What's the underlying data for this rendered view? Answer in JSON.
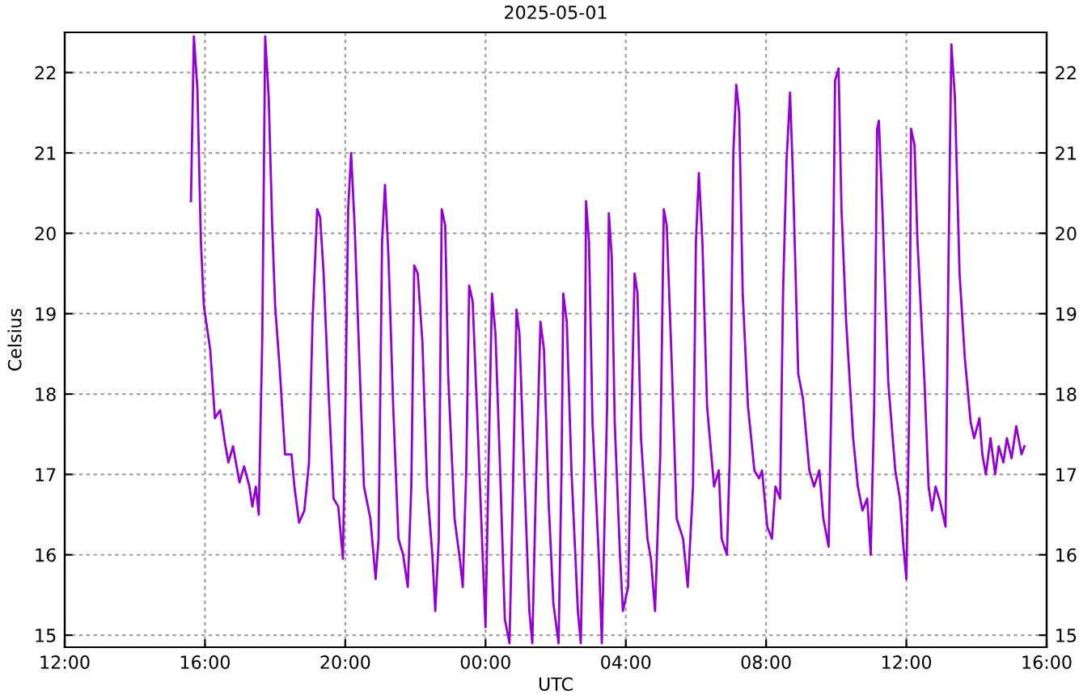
{
  "chart_data": {
    "type": "line",
    "title": "2025-05-01",
    "xlabel": "UTC",
    "ylabel": "Celsius",
    "xlim": [
      "2025-04-30T12:00",
      "2025-05-01T16:00"
    ],
    "xticks": [
      {
        "value": "2025-04-30T12:00",
        "label": "12:00"
      },
      {
        "value": "2025-04-30T16:00",
        "label": "16:00"
      },
      {
        "value": "2025-04-30T20:00",
        "label": "20:00"
      },
      {
        "value": "2025-05-01T00:00",
        "label": "00:00"
      },
      {
        "value": "2025-05-01T04:00",
        "label": "04:00"
      },
      {
        "value": "2025-05-01T08:00",
        "label": "08:00"
      },
      {
        "value": "2025-05-01T12:00",
        "label": "12:00"
      },
      {
        "value": "2025-05-01T16:00",
        "label": "16:00"
      }
    ],
    "ylim": [
      14.85,
      22.5
    ],
    "yticks": [
      15,
      16,
      17,
      18,
      19,
      20,
      21,
      22
    ],
    "y2lim": [
      14.85,
      22.5
    ],
    "y2ticks": [
      15,
      16,
      17,
      18,
      19,
      20,
      21,
      22
    ],
    "grid": true,
    "legend": false,
    "marker": "none",
    "line_style": "solid",
    "series": [
      {
        "color": "#9400d3",
        "x": [
          "2025-04-30T15:36",
          "2025-04-30T15:41",
          "2025-04-30T15:47",
          "2025-04-30T15:53",
          "2025-04-30T15:58",
          "2025-04-30T16:09",
          "2025-04-30T16:17",
          "2025-04-30T16:26",
          "2025-04-30T16:34",
          "2025-04-30T16:40",
          "2025-04-30T16:48",
          "2025-04-30T16:59",
          "2025-04-30T17:07",
          "2025-04-30T17:16",
          "2025-04-30T17:21",
          "2025-04-30T17:27",
          "2025-04-30T17:32",
          "2025-04-30T17:38",
          "2025-04-30T17:41",
          "2025-04-30T17:43",
          "2025-04-30T17:49",
          "2025-04-30T17:55",
          "2025-04-30T18:00",
          "2025-04-30T18:08",
          "2025-04-30T18:17",
          "2025-04-30T18:28",
          "2025-04-30T18:33",
          "2025-04-30T18:41",
          "2025-04-30T18:50",
          "2025-04-30T18:58",
          "2025-04-30T19:04",
          "2025-04-30T19:12",
          "2025-04-30T19:17",
          "2025-04-30T19:23",
          "2025-04-30T19:31",
          "2025-04-30T19:40",
          "2025-04-30T19:48",
          "2025-04-30T19:56",
          "2025-04-30T19:59",
          "2025-04-30T20:05",
          "2025-04-30T20:10",
          "2025-04-30T20:16",
          "2025-04-30T20:24",
          "2025-04-30T20:32",
          "2025-04-30T20:43",
          "2025-04-30T20:52",
          "2025-04-30T20:57",
          "2025-04-30T21:03",
          "2025-04-30T21:08",
          "2025-04-30T21:14",
          "2025-04-30T21:22",
          "2025-04-30T21:31",
          "2025-04-30T21:39",
          "2025-04-30T21:47",
          "2025-04-30T21:53",
          "2025-04-30T21:58",
          "2025-04-30T22:04",
          "2025-04-30T22:12",
          "2025-04-30T22:20",
          "2025-04-30T22:29",
          "2025-04-30T22:34",
          "2025-04-30T22:40",
          "2025-04-30T22:45",
          "2025-04-30T22:51",
          "2025-04-30T22:56",
          "2025-04-30T23:07",
          "2025-04-30T23:16",
          "2025-04-30T23:21",
          "2025-04-30T23:27",
          "2025-04-30T23:32",
          "2025-04-30T23:38",
          "2025-04-30T23:46",
          "2025-04-30T23:55",
          "2025-05-01T00:00",
          "2025-05-01T00:05",
          "2025-05-01T00:11",
          "2025-05-01T00:17",
          "2025-05-01T00:25",
          "2025-05-01T00:33",
          "2025-05-01T00:41",
          "2025-05-01T00:47",
          "2025-05-01T00:53",
          "2025-05-01T00:58",
          "2025-05-01T01:07",
          "2025-05-01T01:15",
          "2025-05-01T01:20",
          "2025-05-01T01:26",
          "2025-05-01T01:34",
          "2025-05-01T01:40",
          "2025-05-01T01:48",
          "2025-05-01T01:56",
          "2025-05-01T02:05",
          "2025-05-01T02:10",
          "2025-05-01T02:13",
          "2025-05-01T02:19",
          "2025-05-01T02:27",
          "2025-05-01T02:38",
          "2025-05-01T02:43",
          "2025-05-01T02:49",
          "2025-05-01T02:52",
          "2025-05-01T02:57",
          "2025-05-01T03:03",
          "2025-05-01T03:14",
          "2025-05-01T03:19",
          "2025-05-01T03:28",
          "2025-05-01T03:31",
          "2025-05-01T03:36",
          "2025-05-01T03:41",
          "2025-05-01T03:50",
          "2025-05-01T03:55",
          "2025-05-01T04:04",
          "2025-05-01T04:09",
          "2025-05-01T04:15",
          "2025-05-01T04:20",
          "2025-05-01T04:26",
          "2025-05-01T04:37",
          "2025-05-01T04:43",
          "2025-05-01T04:50",
          "2025-05-01T04:59",
          "2025-05-01T05:05",
          "2025-05-01T05:10",
          "2025-05-01T05:19",
          "2025-05-01T05:27",
          "2025-05-01T05:38",
          "2025-05-01T05:46",
          "2025-05-01T05:55",
          "2025-05-01T06:00",
          "2025-05-01T06:05",
          "2025-05-01T06:11",
          "2025-05-01T06:19",
          "2025-05-01T06:31",
          "2025-05-01T06:39",
          "2025-05-01T06:44",
          "2025-05-01T06:53",
          "2025-05-01T06:58",
          "2025-05-01T07:04",
          "2025-05-01T07:09",
          "2025-05-01T07:14",
          "2025-05-01T07:20",
          "2025-05-01T07:29",
          "2025-05-01T07:40",
          "2025-05-01T07:48",
          "2025-05-01T07:53",
          "2025-05-01T08:02",
          "2025-05-01T08:10",
          "2025-05-01T08:16",
          "2025-05-01T08:24",
          "2025-05-01T08:29",
          "2025-05-01T08:35",
          "2025-05-01T08:41",
          "2025-05-01T08:46",
          "2025-05-01T08:55",
          "2025-05-01T09:03",
          "2025-05-01T09:14",
          "2025-05-01T09:22",
          "2025-05-01T09:31",
          "2025-05-01T09:38",
          "2025-05-01T09:47",
          "2025-05-01T09:53",
          "2025-05-01T09:58",
          "2025-05-01T10:04",
          "2025-05-01T10:09",
          "2025-05-01T10:17",
          "2025-05-01T10:29",
          "2025-05-01T10:37",
          "2025-05-01T10:45",
          "2025-05-01T10:53",
          "2025-05-01T10:59",
          "2025-05-01T11:05",
          "2025-05-01T11:10",
          "2025-05-01T11:13",
          "2025-05-01T11:19",
          "2025-05-01T11:29",
          "2025-05-01T11:41",
          "2025-05-01T11:49",
          "2025-05-01T11:55",
          "2025-05-01T12:00",
          "2025-05-01T12:05",
          "2025-05-01T12:08",
          "2025-05-01T12:14",
          "2025-05-01T12:19",
          "2025-05-01T12:31",
          "2025-05-01T12:38",
          "2025-05-01T12:44",
          "2025-05-01T12:50",
          "2025-05-01T12:58",
          "2025-05-01T13:07",
          "2025-05-01T13:12",
          "2025-05-01T13:17",
          "2025-05-01T13:23",
          "2025-05-01T13:31",
          "2025-05-01T13:40",
          "2025-05-01T13:50",
          "2025-05-01T13:56",
          "2025-05-01T14:05",
          "2025-05-01T14:10",
          "2025-05-01T14:16",
          "2025-05-01T14:24",
          "2025-05-01T14:32",
          "2025-05-01T14:38",
          "2025-05-01T14:46",
          "2025-05-01T14:52",
          "2025-05-01T15:00",
          "2025-05-01T15:08",
          "2025-05-01T15:17",
          "2025-05-01T15:22"
        ],
        "values": [
          20.4,
          22.45,
          21.8,
          19.9,
          19.1,
          18.55,
          17.7,
          17.8,
          17.4,
          17.15,
          17.35,
          16.9,
          17.1,
          16.85,
          16.6,
          16.85,
          16.5,
          18.7,
          20.9,
          22.45,
          21.7,
          20.1,
          19.1,
          18.3,
          17.25,
          17.25,
          16.85,
          16.4,
          16.55,
          17.15,
          18.9,
          20.3,
          20.2,
          19.5,
          18.1,
          16.7,
          16.6,
          15.95,
          17.2,
          20.3,
          21.0,
          20.1,
          18.45,
          16.85,
          16.45,
          15.7,
          16.2,
          19.9,
          20.6,
          19.7,
          17.85,
          16.2,
          16.0,
          15.6,
          16.85,
          19.6,
          19.5,
          18.65,
          16.85,
          16.0,
          15.3,
          16.2,
          20.3,
          20.1,
          18.25,
          16.45,
          15.95,
          15.6,
          17.05,
          19.35,
          19.15,
          17.7,
          16.0,
          15.1,
          17.05,
          19.25,
          18.75,
          17.05,
          15.2,
          14.9,
          16.85,
          19.05,
          18.75,
          16.85,
          15.3,
          14.9,
          16.8,
          18.9,
          18.55,
          16.65,
          15.4,
          14.9,
          17.05,
          19.25,
          18.9,
          17.05,
          15.3,
          14.9,
          17.25,
          20.4,
          19.9,
          17.65,
          15.95,
          14.9,
          17.85,
          20.25,
          19.7,
          17.65,
          16.0,
          15.3,
          15.6,
          17.45,
          19.5,
          19.25,
          17.45,
          16.2,
          15.95,
          15.3,
          17.25,
          20.3,
          20.1,
          18.3,
          16.45,
          16.2,
          15.6,
          16.85,
          19.9,
          20.75,
          19.9,
          17.85,
          16.85,
          17.05,
          16.2,
          16.0,
          17.25,
          21.0,
          21.85,
          21.5,
          19.25,
          17.85,
          17.05,
          16.95,
          17.05,
          16.35,
          16.2,
          16.85,
          16.7,
          19.25,
          20.9,
          21.75,
          20.7,
          18.25,
          17.95,
          17.05,
          16.85,
          17.05,
          16.45,
          16.1,
          18.45,
          21.9,
          22.05,
          20.3,
          18.9,
          17.45,
          16.85,
          16.55,
          16.7,
          16.0,
          17.85,
          21.3,
          21.4,
          20.3,
          18.15,
          17.05,
          16.7,
          16.1,
          15.7,
          17.85,
          21.3,
          21.1,
          19.9,
          18.15,
          16.85,
          16.55,
          16.85,
          16.65,
          16.35,
          19.6,
          22.35,
          21.7,
          19.5,
          18.45,
          17.65,
          17.45,
          17.7,
          17.25,
          17.0,
          17.45,
          17.0,
          17.35,
          17.15,
          17.45,
          17.2,
          17.6,
          17.25,
          17.35
        ]
      }
    ]
  }
}
